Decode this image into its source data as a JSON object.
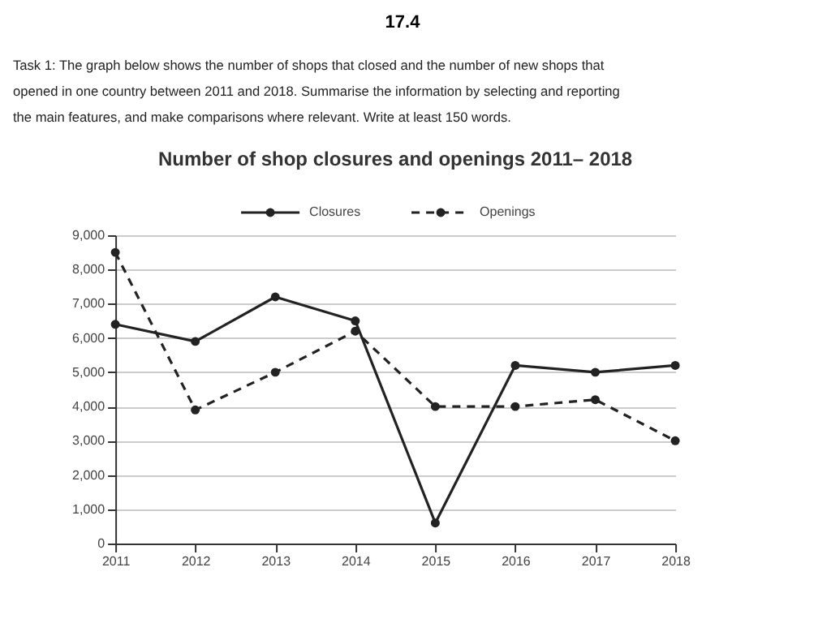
{
  "chart_data": {
    "type": "line",
    "title": "Number of shop closures and openings 2011– 2018",
    "annotations": [
      "17.4",
      "Task 1: The graph below shows the number of shops that closed and the number of new shops that opened in one country between 2011 and 2018. Summarise the information by selecting and reporting the main features, and make comparisons where relevant. Write at least 150 words."
    ],
    "x": [
      2011,
      2012,
      2013,
      2014,
      2015,
      2016,
      2017,
      2018
    ],
    "series": [
      {
        "name": "Closures",
        "color": "#222222",
        "line_style": "solid",
        "values": [
          6400,
          5900,
          7200,
          6500,
          600,
          5200,
          5000,
          5200
        ]
      },
      {
        "name": "Openings",
        "color": "#222222",
        "line_style": "dashed",
        "values": [
          8500,
          3900,
          5000,
          6200,
          4000,
          4000,
          4200,
          3000
        ]
      }
    ],
    "xlim": [
      2011,
      2018
    ],
    "xticks": [
      2011,
      2012,
      2013,
      2014,
      2015,
      2016,
      2017,
      2018
    ],
    "ylim": [
      0,
      9000
    ],
    "yticks": [
      {
        "value": 0,
        "label": "0"
      },
      {
        "value": 1000,
        "label": "1,000"
      },
      {
        "value": 2000,
        "label": "2,000"
      },
      {
        "value": 3000,
        "label": "3,000"
      },
      {
        "value": 4000,
        "label": "4,000"
      },
      {
        "value": 5000,
        "label": "5,000"
      },
      {
        "value": 6000,
        "label": "6,000"
      },
      {
        "value": 7000,
        "label": "7,000"
      },
      {
        "value": 8000,
        "label": "8,000"
      },
      {
        "value": 9000,
        "label": "9,000"
      }
    ],
    "grid": "y",
    "legend": "top",
    "marker": "circle"
  }
}
